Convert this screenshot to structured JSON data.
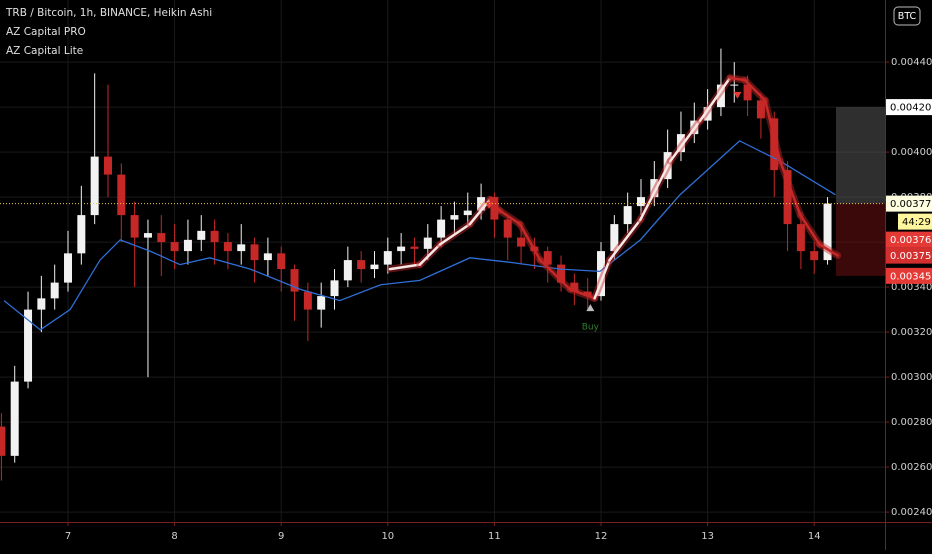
{
  "chart_data": {
    "type": "candlestick",
    "title": "TRB / Bitcoin, 1h, BINANCE, Heikin Ashi",
    "indicators": [
      "AZ Capital PRO",
      "AZ Capital Lite"
    ],
    "currency_button": "BTC",
    "countdown": "44:29",
    "up_color": "#f2f2f2",
    "down_color": "#c62828",
    "grid": true,
    "xlim": [
      6.362,
      14.664
    ],
    "xticks": [
      7,
      8,
      9,
      10,
      11,
      12,
      13,
      14
    ],
    "ylim": [
      0.002356,
      0.004676
    ],
    "yticks": [
      {
        "value": 0.0024,
        "label": "0.002400"
      },
      {
        "value": 0.0026,
        "label": "0.002600"
      },
      {
        "value": 0.0028,
        "label": "0.002800"
      },
      {
        "value": 0.003,
        "label": "0.003000"
      },
      {
        "value": 0.0032,
        "label": "0.003200"
      },
      {
        "value": 0.0034,
        "label": "0.003400"
      },
      {
        "value": 0.0036,
        "label": "0.003600"
      },
      {
        "value": 0.0038,
        "label": "0.003800"
      },
      {
        "value": 0.004,
        "label": "0.004000"
      },
      {
        "value": 0.0042,
        "label": "0.004200"
      },
      {
        "value": 0.0044,
        "label": "0.004400"
      }
    ],
    "x": [
      6.375,
      6.5,
      6.625,
      6.75,
      6.875,
      7,
      7.125,
      7.25,
      7.375,
      7.5,
      7.625,
      7.75,
      7.875,
      8,
      8.125,
      8.25,
      8.375,
      8.5,
      8.625,
      8.75,
      8.875,
      9,
      9.125,
      9.25,
      9.375,
      9.5,
      9.625,
      9.75,
      9.875,
      10,
      10.125,
      10.25,
      10.375,
      10.5,
      10.625,
      10.75,
      10.875,
      11,
      11.125,
      11.25,
      11.375,
      11.5,
      11.625,
      11.75,
      11.875,
      12,
      12.125,
      12.25,
      12.375,
      12.5,
      12.625,
      12.75,
      12.875,
      13,
      13.125,
      13.25,
      13.375,
      13.5,
      13.625,
      13.75,
      13.875,
      14,
      14.125
    ],
    "open": [
      0.00278,
      0.00265,
      0.00298,
      0.0033,
      0.00335,
      0.00342,
      0.00355,
      0.00372,
      0.00398,
      0.0039,
      0.00372,
      0.00362,
      0.00364,
      0.0036,
      0.00356,
      0.00361,
      0.00365,
      0.0036,
      0.00356,
      0.00359,
      0.00352,
      0.00355,
      0.00348,
      0.00338,
      0.0033,
      0.00336,
      0.00343,
      0.00352,
      0.00348,
      0.0035,
      0.00356,
      0.00358,
      0.00357,
      0.00362,
      0.0037,
      0.00372,
      0.00374,
      0.0038,
      0.0037,
      0.00362,
      0.00358,
      0.00356,
      0.0035,
      0.00342,
      0.00338,
      0.00336,
      0.00356,
      0.00368,
      0.00376,
      0.0038,
      0.00388,
      0.004,
      0.00408,
      0.00414,
      0.0042,
      0.0043,
      0.0043,
      0.00423,
      0.00415,
      0.00392,
      0.00368,
      0.00356,
      0.00352
    ],
    "high": [
      0.00284,
      0.00305,
      0.00338,
      0.00345,
      0.0035,
      0.00365,
      0.00385,
      0.00435,
      0.0043,
      0.00395,
      0.00378,
      0.0037,
      0.00372,
      0.00368,
      0.0037,
      0.00372,
      0.0037,
      0.00364,
      0.00368,
      0.00362,
      0.00362,
      0.00358,
      0.0035,
      0.00342,
      0.00342,
      0.00348,
      0.00358,
      0.00356,
      0.00356,
      0.00362,
      0.00364,
      0.00362,
      0.00368,
      0.00376,
      0.00378,
      0.00382,
      0.00386,
      0.00382,
      0.00372,
      0.00366,
      0.00362,
      0.00358,
      0.00354,
      0.00346,
      0.00344,
      0.0036,
      0.00372,
      0.00382,
      0.00388,
      0.00396,
      0.0041,
      0.00418,
      0.00422,
      0.00428,
      0.00446,
      0.0044,
      0.00434,
      0.00426,
      0.00418,
      0.00396,
      0.00372,
      0.0036,
      0.0038
    ],
    "low": [
      0.00254,
      0.00262,
      0.00295,
      0.0032,
      0.0033,
      0.00338,
      0.0035,
      0.00368,
      0.0038,
      0.0036,
      0.0034,
      0.003,
      0.00345,
      0.00348,
      0.0035,
      0.00356,
      0.0035,
      0.00348,
      0.0035,
      0.00342,
      0.00345,
      0.00338,
      0.00325,
      0.00316,
      0.00322,
      0.0033,
      0.0034,
      0.00342,
      0.00344,
      0.00346,
      0.0035,
      0.0035,
      0.00352,
      0.00358,
      0.00364,
      0.00368,
      0.0037,
      0.00362,
      0.00352,
      0.0035,
      0.00348,
      0.00342,
      0.00338,
      0.00332,
      0.0033,
      0.00334,
      0.00352,
      0.00364,
      0.00372,
      0.00376,
      0.00384,
      0.00396,
      0.00404,
      0.0041,
      0.00416,
      0.00422,
      0.00416,
      0.00406,
      0.0038,
      0.00356,
      0.00348,
      0.00346,
      0.0035
    ],
    "close": [
      0.00265,
      0.00298,
      0.0033,
      0.00335,
      0.00342,
      0.00355,
      0.00372,
      0.00398,
      0.0039,
      0.00372,
      0.00362,
      0.00364,
      0.0036,
      0.00356,
      0.00361,
      0.00365,
      0.0036,
      0.00356,
      0.00359,
      0.00352,
      0.00355,
      0.00348,
      0.00338,
      0.0033,
      0.00336,
      0.00343,
      0.00352,
      0.00348,
      0.0035,
      0.00356,
      0.00358,
      0.00357,
      0.00362,
      0.0037,
      0.00372,
      0.00374,
      0.0038,
      0.0037,
      0.00362,
      0.00358,
      0.00356,
      0.0035,
      0.00342,
      0.00338,
      0.00336,
      0.00356,
      0.00368,
      0.00376,
      0.0038,
      0.00388,
      0.004,
      0.00408,
      0.00414,
      0.0042,
      0.0043,
      0.0043,
      0.00423,
      0.00415,
      0.00392,
      0.00368,
      0.00356,
      0.00352,
      0.003771
    ],
    "overlays": [
      {
        "color": "#2f6fd6",
        "x": [
          6.4,
          6.74,
          7.02,
          7.3,
          7.49,
          7.77,
          8.05,
          8.33,
          8.71,
          9.18,
          9.55,
          9.93,
          10.3,
          10.77,
          11.15,
          11.62,
          11.99,
          12.37,
          12.74,
          13.3,
          13.68,
          14.2
        ],
        "values": [
          0.00334,
          0.00321,
          0.0033,
          0.00352,
          0.00361,
          0.00356,
          0.0035,
          0.00353,
          0.00348,
          0.00339,
          0.00334,
          0.00341,
          0.00343,
          0.00353,
          0.00351,
          0.00348,
          0.00347,
          0.00361,
          0.00381,
          0.00405,
          0.00396,
          0.00381
        ]
      },
      {
        "up_color": "#f6e8e8",
        "down_color": "#c62828",
        "x": [
          10.02,
          10.3,
          10.49,
          10.77,
          10.96,
          11.05,
          11.24,
          11.43,
          11.71,
          11.94,
          12.08,
          12.37,
          12.65,
          12.93,
          13.21,
          13.35,
          13.54,
          13.68,
          13.87,
          14.05,
          14.22
        ],
        "values": [
          0.00348,
          0.0035,
          0.00359,
          0.00368,
          0.00379,
          0.00374,
          0.00368,
          0.00352,
          0.00339,
          0.00335,
          0.00352,
          0.0037,
          0.00396,
          0.00414,
          0.00433,
          0.00432,
          0.00423,
          0.00396,
          0.00372,
          0.00359,
          0.00354
        ]
      }
    ],
    "signals": [
      {
        "x": 10.95,
        "y": 0.00376,
        "color": "#e53935",
        "direction": "down"
      },
      {
        "x": 13.28,
        "y": 0.00425,
        "color": "#e53935",
        "direction": "down"
      },
      {
        "x": 11.9,
        "y": 0.00332,
        "color": "#bdbdbd",
        "direction": "up",
        "label": "Buy",
        "label_color": "#2e7d32"
      }
    ],
    "current_price": 0.003771,
    "current_line_color": "#f5c542",
    "price_labels": [
      {
        "value": 0.0042,
        "label": "0.004200",
        "bg": "#ffffff",
        "fg": "#000000"
      },
      {
        "value": 0.003771,
        "label": "0.003771",
        "bg": "#fffde0",
        "fg": "#000000"
      },
      {
        "value": 0.00376,
        "label": "0.003760",
        "bg": "#e53935",
        "fg": "#ffffff"
      },
      {
        "value": 0.003752,
        "label": "0.003752",
        "bg": "#d32f2f",
        "fg": "#ffffff"
      },
      {
        "value": 0.00345,
        "label": "0.003450",
        "bg": "#e53935",
        "fg": "#ffffff"
      }
    ]
  }
}
